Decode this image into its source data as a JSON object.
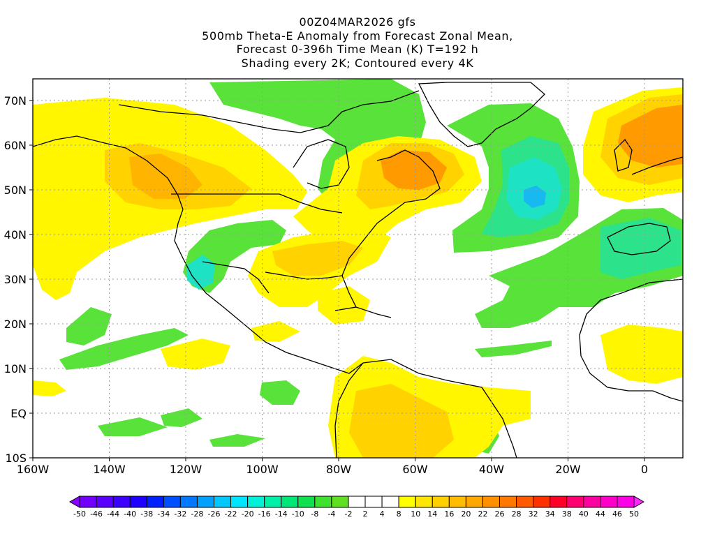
{
  "title": {
    "line1": "00Z04MAR2026 gfs",
    "line2": "500mb Theta-E Anomaly from Forecast Zonal Mean,",
    "line3": "Forecast 0-396h Time Mean (K) T=192 h",
    "line4": "Shading every 2K; Contoured every 4K"
  },
  "map": {
    "lat_labels": [
      "70N",
      "60N",
      "50N",
      "40N",
      "30N",
      "20N",
      "10N",
      "EQ",
      "10S"
    ],
    "lon_labels": [
      "160W",
      "140W",
      "120W",
      "100W",
      "80W",
      "60W",
      "40W",
      "20W",
      "0"
    ],
    "colors": {
      "green_light": "#58e23a",
      "green_teal": "#2ce28a",
      "teal": "#1de3c4",
      "cyan_blue": "#18b8f0",
      "yellow": "#fff600",
      "yellow_orange": "#ffd200",
      "orange_light": "#ffb400",
      "orange": "#ff9a00",
      "orange_red": "#ff7a00"
    }
  },
  "colorbar": {
    "labels": [
      "-50",
      "-46",
      "-44",
      "-40",
      "-38",
      "-34",
      "-32",
      "-28",
      "-26",
      "-22",
      "-20",
      "-16",
      "-14",
      "-10",
      "-8",
      "-4",
      "-2",
      "2",
      "4",
      "8",
      "10",
      "14",
      "16",
      "20",
      "22",
      "26",
      "28",
      "32",
      "34",
      "38",
      "40",
      "44",
      "46",
      "50"
    ],
    "colors": [
      "#8a00ff",
      "#7200ff",
      "#5a00ff",
      "#3c00ff",
      "#1e00ff",
      "#0020ff",
      "#0050ff",
      "#0078ff",
      "#00a0ff",
      "#00c8ff",
      "#00e6ff",
      "#00f0d8",
      "#00f0a8",
      "#00e678",
      "#10e050",
      "#40e030",
      "#60e020",
      "#ffffff",
      "#ffffff",
      "#ffffff",
      "#ffff00",
      "#ffe600",
      "#ffd000",
      "#ffbc00",
      "#ffa800",
      "#ff9000",
      "#ff7800",
      "#ff5a00",
      "#ff3000",
      "#ff0028",
      "#ff0070",
      "#ff00a0",
      "#ff00c8",
      "#ff00e6",
      "#ff28ff"
    ]
  }
}
